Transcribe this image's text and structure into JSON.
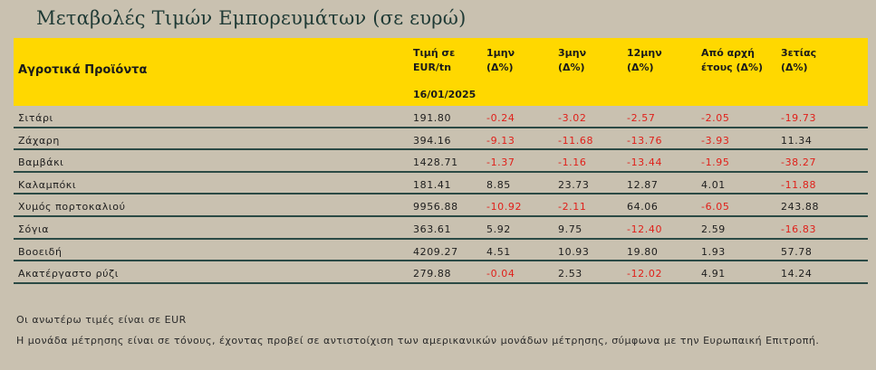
{
  "title": "Μεταβολές Τιμών Εμπορευμάτων (σε ευρώ)",
  "header": {
    "category": "Αγροτικά Προϊόντα",
    "columns": [
      {
        "line1": "Τιμή σε",
        "line2": "EUR/tn"
      },
      {
        "line1": "1μην",
        "line2": "(Δ%)"
      },
      {
        "line1": "3μην",
        "line2": "(Δ%)"
      },
      {
        "line1": "12μην",
        "line2": "(Δ%)"
      },
      {
        "line1": "Από αρχή",
        "line2": "έτους  (Δ%)"
      },
      {
        "line1": "3ετίας",
        "line2": "(Δ%)"
      }
    ],
    "date": "16/01/2025"
  },
  "rows": [
    {
      "name": "Σιτάρι",
      "price": "191.80",
      "m1": "-0.24",
      "m3": "-3.02",
      "m12": "-2.57",
      "ytd": "-2.05",
      "y3": "-19.73"
    },
    {
      "name": "Ζάχαρη",
      "price": "394.16",
      "m1": "-9.13",
      "m3": "-11.68",
      "m12": "-13.76",
      "ytd": "-3.93",
      "y3": "11.34"
    },
    {
      "name": "Βαμβάκι",
      "price": "1428.71",
      "m1": "-1.37",
      "m3": "-1.16",
      "m12": "-13.44",
      "ytd": "-1.95",
      "y3": "-38.27"
    },
    {
      "name": "Καλαμπόκι",
      "price": "181.41",
      "m1": "8.85",
      "m3": "23.73",
      "m12": "12.87",
      "ytd": "4.01",
      "y3": "-11.88"
    },
    {
      "name": "Χυμός πορτοκαλιού",
      "price": "9956.88",
      "m1": "-10.92",
      "m3": "-2.11",
      "m12": "64.06",
      "ytd": "-6.05",
      "y3": "243.88"
    },
    {
      "name": "Σόγια",
      "price": "363.61",
      "m1": "5.92",
      "m3": "9.75",
      "m12": "-12.40",
      "ytd": "2.59",
      "y3": "-16.83"
    },
    {
      "name": "Βοοειδή",
      "price": "4209.27",
      "m1": "4.51",
      "m3": "10.93",
      "m12": "19.80",
      "ytd": "1.93",
      "y3": "57.78"
    },
    {
      "name": "Ακατέργαστο ρύζι",
      "price": "279.88",
      "m1": "-0.04",
      "m3": "2.53",
      "m12": "-12.02",
      "ytd": "4.91",
      "y3": "14.24"
    }
  ],
  "notes": [
    "Οι ανωτέρω τιμές είναι σε EUR",
    "Η μονάδα μέτρησης είναι σε τόνους, έχοντας προβεί σε αντιστοίχιση των αμερικανικών μονάδων μέτρησης, σύμφωνα με την Ευρωπαική Επιτροπή."
  ],
  "colors": {
    "header_bg": "#ffd800",
    "negative": "#e0201a",
    "rule": "#2b4a45",
    "background": "#c9c1b0"
  }
}
